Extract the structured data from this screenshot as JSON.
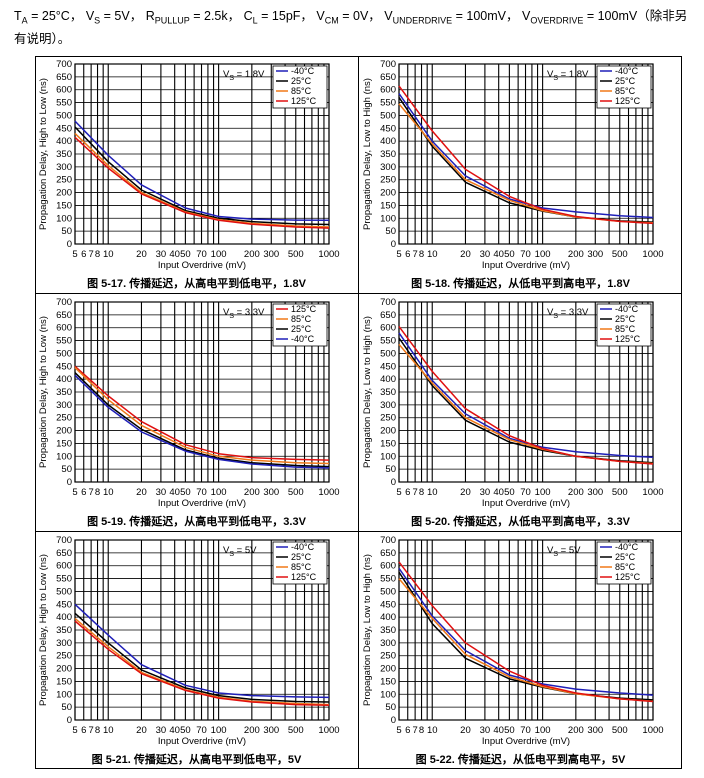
{
  "conditions": {
    "ta_var": "T",
    "ta_sub": "A",
    "ta_val": " = 25°C，",
    "vs_var": "V",
    "vs_sub": "S",
    "vs_val": " = 5V，",
    "rp_var": "R",
    "rp_sub": "PULLUP",
    "rp_val": " = 2.5k，",
    "cl_var": "C",
    "cl_sub": "L",
    "cl_val": " = 15pF，",
    "vcm_var": "V",
    "vcm_sub": "CM",
    "vcm_val": " = 0V，",
    "vud_var": "V",
    "vud_sub": "UNDERDRIVE",
    "vud_val": " = 100mV，",
    "vod_var": "V",
    "vod_sub": "OVERDRIVE",
    "vod_val": " = 100mV",
    "note": "（除非另有说明）。"
  },
  "colors": {
    "-40°C": "#1f1fb8",
    "25°C": "#000000",
    "85°C": "#f07818",
    "125°C": "#e01010"
  },
  "chart_data": [
    {
      "type": "line",
      "panel": "fig-5-17",
      "title": "图 5-17. 传播延迟，从高电平到低电平，1.8V",
      "xlabel": "Input Overdrive (mV)",
      "ylabel": "Propagation Delay, High to Low (ns)",
      "xscale": "log",
      "xlim": [
        5,
        1000
      ],
      "ylim": [
        0,
        700
      ],
      "xticks": [
        5,
        6,
        7,
        8,
        10,
        20,
        30,
        40,
        50,
        70,
        100,
        200,
        300,
        500,
        1000
      ],
      "xtick_labels": [
        "5",
        "6",
        "7",
        "8",
        "10",
        "20",
        "30",
        "40",
        "50",
        "70",
        "100",
        "200",
        "300",
        "500",
        "1000"
      ],
      "yticks": [
        0,
        50,
        100,
        150,
        200,
        250,
        300,
        350,
        400,
        450,
        500,
        550,
        600,
        650,
        700
      ],
      "legend_vs": "V",
      "legend_vs_sub": "S",
      "legend_vs_val": " = 1.8V",
      "x": [
        5,
        10,
        20,
        50,
        100,
        200,
        500,
        1000
      ],
      "series": [
        {
          "name": "-40°C",
          "values": [
            478,
            345,
            230,
            140,
            107,
            97,
            93,
            92
          ]
        },
        {
          "name": "25°C",
          "values": [
            455,
            320,
            210,
            130,
            100,
            87,
            78,
            76
          ]
        },
        {
          "name": "85°C",
          "values": [
            430,
            305,
            200,
            125,
            95,
            80,
            70,
            66
          ]
        },
        {
          "name": "125°C",
          "values": [
            415,
            295,
            195,
            122,
            92,
            77,
            66,
            62
          ]
        }
      ]
    },
    {
      "type": "line",
      "panel": "fig-5-18",
      "title": "图 5-18. 传播延迟，从低电平到高电平，1.8V",
      "xlabel": "Input Overdrive (mV)",
      "ylabel": "Propagation Delay, Low to High (ns)",
      "xscale": "log",
      "xlim": [
        5,
        1000
      ],
      "ylim": [
        0,
        700
      ],
      "xticks": [
        5,
        6,
        7,
        8,
        10,
        20,
        30,
        40,
        50,
        70,
        100,
        200,
        300,
        500,
        1000
      ],
      "xtick_labels": [
        "5",
        "6",
        "7",
        "8",
        "10",
        "20",
        "30",
        "40",
        "50",
        "70",
        "100",
        "200",
        "300",
        "500",
        "1000"
      ],
      "yticks": [
        0,
        50,
        100,
        150,
        200,
        250,
        300,
        350,
        400,
        450,
        500,
        550,
        600,
        650,
        700
      ],
      "legend_vs": "V",
      "legend_vs_sub": "S",
      "legend_vs_val": " = 1.8V",
      "x": [
        5,
        10,
        20,
        50,
        100,
        200,
        500,
        1000
      ],
      "series": [
        {
          "name": "-40°C",
          "values": [
            585,
            400,
            265,
            175,
            140,
            125,
            110,
            103
          ]
        },
        {
          "name": "25°C",
          "values": [
            570,
            380,
            240,
            160,
            128,
            105,
            90,
            85
          ]
        },
        {
          "name": "85°C",
          "values": [
            545,
            390,
            250,
            170,
            130,
            105,
            88,
            82
          ]
        },
        {
          "name": "125°C",
          "values": [
            615,
            440,
            290,
            185,
            135,
            107,
            88,
            80
          ]
        }
      ]
    },
    {
      "type": "line",
      "panel": "fig-5-19",
      "title": "图 5-19. 传播延迟，从高电平到低电平，3.3V",
      "xlabel": "Input Overdrive (mV)",
      "ylabel": "Propagation Delay, High to Low (ns)",
      "xscale": "log",
      "xlim": [
        5,
        1000
      ],
      "ylim": [
        0,
        700
      ],
      "xticks": [
        5,
        6,
        7,
        8,
        10,
        20,
        30,
        40,
        50,
        70,
        100,
        200,
        300,
        500,
        1000
      ],
      "xtick_labels": [
        "5",
        "6",
        "7",
        "8",
        "10",
        "20",
        "30",
        "40",
        "50",
        "70",
        "100",
        "200",
        "300",
        "500",
        "1000"
      ],
      "yticks": [
        0,
        50,
        100,
        150,
        200,
        250,
        300,
        350,
        400,
        450,
        500,
        550,
        600,
        650,
        700
      ],
      "legend_vs": "V",
      "legend_vs_sub": "S",
      "legend_vs_val": " = 3.3V",
      "x": [
        5,
        10,
        20,
        50,
        100,
        200,
        500,
        1000
      ],
      "series": [
        {
          "name": "125°C",
          "values": [
            450,
            335,
            235,
            145,
            110,
            95,
            88,
            85
          ]
        },
        {
          "name": "85°C",
          "values": [
            445,
            320,
            220,
            135,
            100,
            85,
            75,
            72
          ]
        },
        {
          "name": "25°C",
          "values": [
            425,
            300,
            205,
            125,
            92,
            75,
            64,
            60
          ]
        },
        {
          "name": "-40°C",
          "values": [
            415,
            290,
            195,
            120,
            88,
            70,
            58,
            55
          ]
        }
      ]
    },
    {
      "type": "line",
      "panel": "fig-5-20",
      "title": "图 5-20. 传播延迟，从低电平到高电平，3.3V",
      "xlabel": "Input Overdrive (mV)",
      "ylabel": "Propagation Delay, Low to High (ns)",
      "xscale": "log",
      "xlim": [
        5,
        1000
      ],
      "ylim": [
        0,
        700
      ],
      "xticks": [
        5,
        6,
        7,
        8,
        10,
        20,
        30,
        40,
        50,
        70,
        100,
        200,
        300,
        500,
        1000
      ],
      "xtick_labels": [
        "5",
        "6",
        "7",
        "8",
        "10",
        "20",
        "30",
        "40",
        "50",
        "70",
        "100",
        "200",
        "300",
        "500",
        "1000"
      ],
      "yticks": [
        0,
        50,
        100,
        150,
        200,
        250,
        300,
        350,
        400,
        450,
        500,
        550,
        600,
        650,
        700
      ],
      "legend_vs": "V",
      "legend_vs_sub": "S",
      "legend_vs_val": " = 3.3V",
      "x": [
        5,
        10,
        20,
        50,
        100,
        200,
        500,
        1000
      ],
      "series": [
        {
          "name": "-40°C",
          "values": [
            580,
            395,
            265,
            170,
            135,
            118,
            103,
            96
          ]
        },
        {
          "name": "25°C",
          "values": [
            560,
            375,
            240,
            155,
            123,
            100,
            83,
            75
          ]
        },
        {
          "name": "85°C",
          "values": [
            535,
            385,
            250,
            165,
            127,
            100,
            80,
            72
          ]
        },
        {
          "name": "125°C",
          "values": [
            605,
            430,
            285,
            180,
            130,
            100,
            80,
            70
          ]
        }
      ]
    },
    {
      "type": "line",
      "panel": "fig-5-21",
      "title": "图 5-21. 传播延迟，从高电平到低电平，5V",
      "xlabel": "Input Overdrive (mV)",
      "ylabel": "Propagation Delay, High to Low (ns)",
      "xscale": "log",
      "xlim": [
        5,
        1000
      ],
      "ylim": [
        0,
        700
      ],
      "xticks": [
        5,
        6,
        7,
        8,
        10,
        20,
        30,
        40,
        50,
        70,
        100,
        200,
        300,
        500,
        1000
      ],
      "xtick_labels": [
        "5",
        "6",
        "7",
        "8",
        "10",
        "20",
        "30",
        "40",
        "50",
        "70",
        "100",
        "200",
        "300",
        "500",
        "1000"
      ],
      "yticks": [
        0,
        50,
        100,
        150,
        200,
        250,
        300,
        350,
        400,
        450,
        500,
        550,
        600,
        650,
        700
      ],
      "legend_vs": "V",
      "legend_vs_sub": "S",
      "legend_vs_val": " = 5V",
      "x": [
        5,
        10,
        20,
        50,
        100,
        200,
        500,
        1000
      ],
      "series": [
        {
          "name": "-40°C",
          "values": [
            450,
            330,
            215,
            135,
            105,
            95,
            90,
            88
          ]
        },
        {
          "name": "25°C",
          "values": [
            415,
            300,
            195,
            125,
            95,
            80,
            72,
            70
          ]
        },
        {
          "name": "85°C",
          "values": [
            395,
            285,
            185,
            118,
            88,
            73,
            64,
            60
          ]
        },
        {
          "name": "125°C",
          "values": [
            385,
            275,
            180,
            115,
            85,
            70,
            60,
            57
          ]
        }
      ]
    },
    {
      "type": "line",
      "panel": "fig-5-22",
      "title": "图 5-22. 传播延迟，从低电平到高电平，5V",
      "xlabel": "Input Overdrive (mV)",
      "ylabel": "Propagation Delay, Low to High (ns)",
      "xscale": "log",
      "xlim": [
        5,
        1000
      ],
      "ylim": [
        0,
        700
      ],
      "xticks": [
        5,
        6,
        7,
        8,
        10,
        20,
        30,
        40,
        50,
        70,
        100,
        200,
        300,
        500,
        1000
      ],
      "xtick_labels": [
        "5",
        "6",
        "7",
        "8",
        "10",
        "20",
        "30",
        "40",
        "50",
        "70",
        "100",
        "200",
        "300",
        "500",
        "1000"
      ],
      "yticks": [
        0,
        50,
        100,
        150,
        200,
        250,
        300,
        350,
        400,
        450,
        500,
        550,
        600,
        650,
        700
      ],
      "legend_vs": "V",
      "legend_vs_sub": "S",
      "legend_vs_val": " = 5V",
      "x": [
        5,
        10,
        20,
        50,
        100,
        200,
        500,
        1000
      ],
      "series": [
        {
          "name": "-40°C",
          "values": [
            590,
            405,
            270,
            175,
            140,
            120,
            105,
            97
          ]
        },
        {
          "name": "25°C",
          "values": [
            575,
            375,
            240,
            160,
            127,
            102,
            85,
            78
          ]
        },
        {
          "name": "85°C",
          "values": [
            550,
            395,
            255,
            168,
            130,
            102,
            82,
            73
          ]
        },
        {
          "name": "125°C",
          "values": [
            615,
            445,
            300,
            190,
            135,
            105,
            82,
            72
          ]
        }
      ]
    }
  ]
}
